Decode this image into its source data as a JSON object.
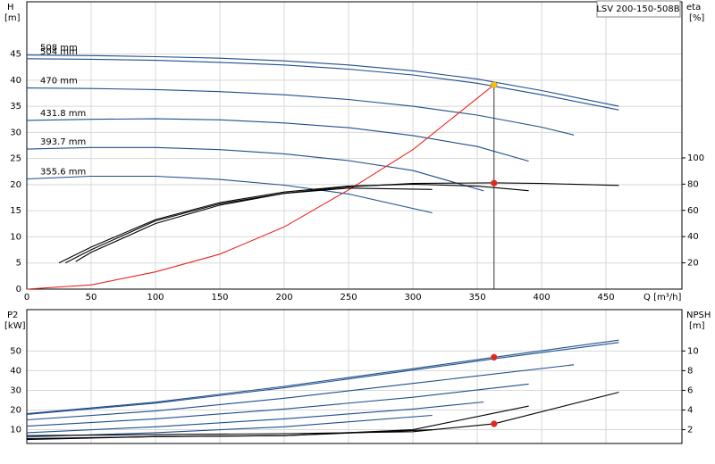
{
  "chart_data": [
    {
      "type": "line",
      "title": "LSV 200-150-508B",
      "ylabel": "H",
      "yunit": "[m]",
      "y2label": "eta",
      "y2unit": "[%]",
      "xlabel": "Q [m³/h]",
      "xlim": [
        0,
        509
      ],
      "xticks": [
        0,
        50,
        100,
        150,
        200,
        250,
        300,
        350,
        400,
        450
      ],
      "ylim": [
        0,
        55
      ],
      "yticks": [
        0,
        5,
        10,
        15,
        20,
        25,
        30,
        35,
        40,
        45
      ],
      "y2lim": [
        0,
        219
      ],
      "y2ticks": [
        20,
        40,
        60,
        80,
        100
      ],
      "grid": true,
      "drop_line": true,
      "series": [
        {
          "name": "508 mm",
          "color": "#1f4e8c",
          "x": [
            0,
            50,
            100,
            150,
            200,
            250,
            300,
            350,
            400,
            460
          ],
          "values": [
            44.8,
            44.7,
            44.5,
            44.2,
            43.7,
            42.9,
            41.8,
            40.2,
            38,
            35
          ]
        },
        {
          "name": "504 mm",
          "color": "#1f4e8c",
          "x": [
            0,
            50,
            100,
            150,
            200,
            250,
            300,
            350,
            400,
            460
          ],
          "values": [
            44.1,
            44,
            43.8,
            43.4,
            42.9,
            42.1,
            41,
            39.4,
            37.2,
            34.3
          ]
        },
        {
          "name": "470 mm",
          "color": "#1f4e8c",
          "x": [
            0,
            50,
            100,
            150,
            200,
            250,
            300,
            350,
            400,
            425
          ],
          "values": [
            38.5,
            38.4,
            38.2,
            37.8,
            37.2,
            36.3,
            35,
            33.3,
            31,
            29.5
          ]
        },
        {
          "name": "431.8 mm",
          "color": "#1f4e8c",
          "x": [
            0,
            50,
            100,
            150,
            200,
            250,
            300,
            350,
            390
          ],
          "values": [
            32.3,
            32.5,
            32.6,
            32.4,
            31.8,
            30.9,
            29.4,
            27.3,
            24.5
          ]
        },
        {
          "name": "393.7 mm",
          "color": "#1f4e8c",
          "x": [
            0,
            50,
            100,
            150,
            200,
            250,
            300,
            355
          ],
          "values": [
            26.8,
            27.1,
            27.1,
            26.7,
            25.9,
            24.6,
            22.7,
            18.8
          ]
        },
        {
          "name": "355.6 mm",
          "color": "#1f4e8c",
          "x": [
            0,
            50,
            100,
            150,
            200,
            250,
            315
          ],
          "values": [
            21.1,
            21.6,
            21.6,
            21,
            19.9,
            18.2,
            14.6
          ]
        },
        {
          "color": "#e8251c",
          "x": [
            0,
            50,
            100,
            150,
            200,
            250,
            300,
            363
          ],
          "values": [
            0,
            0.8,
            3.3,
            6.7,
            11.9,
            19,
            26.7,
            39.1
          ]
        },
        {
          "color": "#000000",
          "axis": "y2",
          "x": [
            38,
            50,
            100,
            150,
            200,
            250,
            300,
            363,
            400,
            460
          ],
          "values": [
            21,
            28,
            50,
            64,
            73,
            78,
            80.5,
            81,
            80.5,
            79
          ]
        },
        {
          "color": "#000000",
          "axis": "y2",
          "x": [
            25,
            50,
            100,
            150,
            200,
            250,
            300,
            350,
            390
          ],
          "values": [
            20,
            32,
            53,
            66,
            74,
            78.5,
            80,
            78.5,
            75
          ]
        },
        {
          "color": "#000000",
          "axis": "y2",
          "x": [
            30,
            50,
            100,
            150,
            200,
            250,
            315
          ],
          "values": [
            20,
            30,
            52,
            65,
            73,
            77,
            76
          ]
        }
      ],
      "points": [
        {
          "x": 363,
          "value": 39.1,
          "color": "#f5c400"
        },
        {
          "x": 363,
          "value": 80.8,
          "color": "#e8251c",
          "axis": "y2"
        }
      ]
    },
    {
      "type": "line",
      "ylabel": "P2",
      "yunit": "[kW]",
      "y2label": "NPSH",
      "y2unit": "[m]",
      "xlim": [
        0,
        509
      ],
      "xgrid": [
        0,
        50,
        100,
        150,
        200,
        250,
        300,
        350,
        400,
        450
      ],
      "ylim": [
        3,
        71
      ],
      "yticks": [
        10,
        20,
        30,
        40,
        50
      ],
      "y2lim": [
        0.6,
        14.2
      ],
      "y2ticks": [
        2,
        4,
        6,
        8,
        10
      ],
      "grid": true,
      "series": [
        {
          "color": "#1f4e8c",
          "x": [
            0,
            100,
            200,
            300,
            363,
            460
          ],
          "values": [
            18.2,
            24,
            32,
            41,
            46.8,
            55.5
          ]
        },
        {
          "color": "#1f4e8c",
          "x": [
            0,
            100,
            200,
            300,
            363,
            460
          ],
          "values": [
            17.8,
            23.5,
            31.3,
            40.3,
            46,
            54.3
          ]
        },
        {
          "color": "#1f4e8c",
          "x": [
            0,
            100,
            200,
            300,
            425
          ],
          "values": [
            15,
            19.5,
            26,
            33.5,
            43
          ]
        },
        {
          "color": "#1f4e8c",
          "x": [
            0,
            100,
            200,
            300,
            390
          ],
          "values": [
            11.8,
            15.5,
            20.5,
            26.5,
            33.2
          ]
        },
        {
          "color": "#1f4e8c",
          "x": [
            0,
            100,
            200,
            300,
            355
          ],
          "values": [
            8.5,
            11.5,
            15.5,
            20.5,
            24.1
          ]
        },
        {
          "color": "#1f4e8c",
          "x": [
            0,
            100,
            200,
            315
          ],
          "values": [
            6.3,
            8.5,
            11.5,
            17.3
          ]
        },
        {
          "color": "#000000",
          "axis": "y2",
          "x": [
            0,
            100,
            200,
            300,
            363,
            460
          ],
          "values": [
            1.4,
            1.5,
            1.6,
            1.8,
            2.6,
            5.8
          ]
        },
        {
          "color": "#000000",
          "axis": "y2",
          "x": [
            0,
            100,
            200,
            300,
            390
          ],
          "values": [
            1.1,
            1.3,
            1.4,
            2,
            4.4
          ]
        },
        {
          "color": "#000000",
          "axis": "y2",
          "x": [
            0,
            100,
            200,
            315
          ],
          "values": [
            1,
            1.3,
            1.4,
            2
          ]
        }
      ],
      "points": [
        {
          "x": 363,
          "value": 46.8,
          "color": "#e8251c"
        },
        {
          "x": 363,
          "value": 2.6,
          "color": "#e8251c",
          "axis": "y2"
        }
      ]
    }
  ]
}
